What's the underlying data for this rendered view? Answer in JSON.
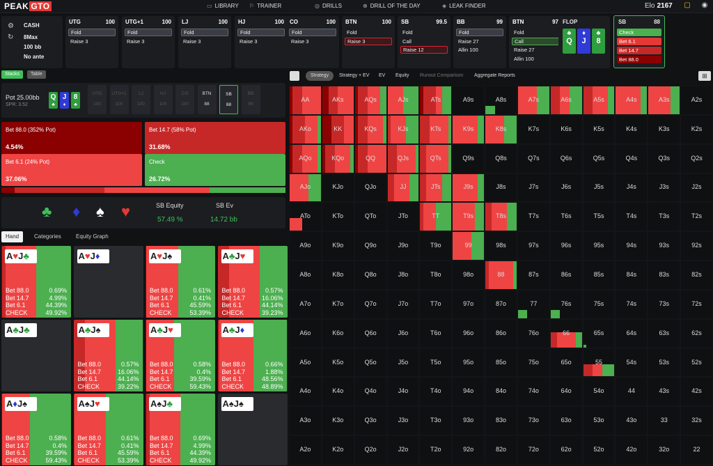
{
  "app": {
    "logo_text": "PEAK",
    "logo_accent": "GTO"
  },
  "nav": [
    {
      "label": "LIBRARY",
      "icon": "monitor-icon"
    },
    {
      "label": "TRAINER",
      "icon": "tie-icon"
    },
    {
      "label": "DRILLS",
      "icon": "target-icon"
    },
    {
      "label": "DRILL OF THE DAY",
      "icon": "compass-icon"
    },
    {
      "label": "LEAK FINDER",
      "icon": "drop-icon"
    }
  ],
  "user": {
    "elo_label": "Elo",
    "elo_value": "2167"
  },
  "game": {
    "mode": "CASH",
    "format": "8Max",
    "stack": "100 bb",
    "ante": "No ante"
  },
  "positions": [
    {
      "name": "UTG",
      "stack": "100",
      "actions": [
        "Fold",
        "Raise 3"
      ],
      "selected": 0
    },
    {
      "name": "UTG+1",
      "stack": "100",
      "actions": [
        "Fold",
        "Raise 3"
      ],
      "selected": 0
    },
    {
      "name": "LJ",
      "stack": "100",
      "actions": [
        "Fold",
        "Raise 3"
      ],
      "selected": 0
    },
    {
      "name": "HJ",
      "stack": "100",
      "actions": [
        "Fold",
        "Raise 3"
      ],
      "selected": 0
    },
    {
      "name": "CO",
      "stack": "100",
      "actions": [
        "Fold",
        "Raise 3"
      ],
      "selected": 0
    },
    {
      "name": "BTN",
      "stack": "100",
      "actions": [
        "Fold",
        "Raise 3"
      ],
      "selected": 1
    },
    {
      "name": "SB",
      "stack": "99.5",
      "actions": [
        "Fold",
        "Call",
        "Raise 12"
      ],
      "selected": 2
    },
    {
      "name": "BB",
      "stack": "99",
      "actions": [
        "Fold",
        "Raise 27",
        "Allin 100"
      ],
      "selected": 0
    },
    {
      "name": "BTN",
      "stack": "97",
      "actions": [
        "Fold",
        "Call",
        "Raise 27",
        "Allin 100"
      ],
      "selected": 1
    }
  ],
  "flop": {
    "label": "FLOP",
    "cards": [
      {
        "rank": "Q",
        "suit": "♣"
      },
      {
        "rank": "J",
        "suit": "♦"
      },
      {
        "rank": "8",
        "suit": "♣"
      }
    ]
  },
  "active": {
    "name": "SB",
    "stack": "88",
    "actions": [
      "Check",
      "Bet 6.1",
      "Bet 14.7",
      "Bet 88.0"
    ]
  },
  "left_tabs": {
    "stacks": "Stacks",
    "table": "Table"
  },
  "potbar": {
    "pot_label": "Pot",
    "pot_value": "25.00bb",
    "spr": "SPR: 3.52",
    "seats": [
      {
        "n": "UTG",
        "b": "100"
      },
      {
        "n": "UTG+1",
        "b": "100"
      },
      {
        "n": "LJ",
        "b": "100"
      },
      {
        "n": "HJ",
        "b": "100"
      },
      {
        "n": "CO",
        "b": "100"
      },
      {
        "n": "BTN",
        "b": "88"
      },
      {
        "n": "SB",
        "b": "88"
      },
      {
        "n": "BB",
        "b": "99"
      }
    ]
  },
  "strategy": [
    {
      "label": "Bet 88.0 (352% Pot)",
      "pct": "4.54%",
      "freq": 4.54,
      "color": "#8b0000"
    },
    {
      "label": "Bet 14.7 (58% Pot)",
      "pct": "31.68%",
      "freq": 31.68,
      "color": "#c62828"
    },
    {
      "label": "Bet 6.1 (24% Pot)",
      "pct": "37.06%",
      "freq": 37.06,
      "color": "#ef4444"
    },
    {
      "label": "Check",
      "pct": "26.72%",
      "freq": 26.72,
      "color": "#4caf50"
    }
  ],
  "equity": {
    "equity_label": "SB Equity",
    "equity_value": "57.49 %",
    "ev_label": "SB Ev",
    "ev_value": "14.72 bb",
    "suits": [
      "♣",
      "♦",
      "♠",
      "♥"
    ]
  },
  "hand_tabs": [
    "Hand",
    "Categories",
    "Equity Graph"
  ],
  "hands": [
    {
      "c1": "A",
      "s1": "♥",
      "c2": "J",
      "s2": "♣",
      "stats": [
        "Bet 88.0",
        "0.69%",
        "Bet 14.7",
        "4.99%",
        "Bet 6.1",
        "44.39%",
        "CHECK",
        "49.92%"
      ],
      "f": [
        0.69,
        4.99,
        44.39,
        49.92
      ]
    },
    {
      "c1": "A",
      "s1": "♥",
      "c2": "J",
      "s2": "♦",
      "stats": [],
      "f": []
    },
    {
      "c1": "A",
      "s1": "♥",
      "c2": "J",
      "s2": "♠",
      "stats": [
        "Bet 88.0",
        "0.61%",
        "Bet 14.7",
        "0.41%",
        "Bet 6.1",
        "45.59%",
        "CHECK",
        "53.39%"
      ],
      "f": [
        0.61,
        0.41,
        45.59,
        53.39
      ]
    },
    {
      "c1": "A",
      "s1": "♣",
      "c2": "J",
      "s2": "♥",
      "stats": [
        "Bet 88.0",
        "0.57%",
        "Bet 14.7",
        "16.06%",
        "Bet 6.1",
        "44.14%",
        "CHECK",
        "39.23%"
      ],
      "f": [
        0.57,
        16.06,
        44.14,
        39.23
      ]
    },
    {
      "c1": "A",
      "s1": "♣",
      "c2": "J",
      "s2": "♣",
      "stats": [],
      "f": []
    },
    {
      "c1": "A",
      "s1": "♣",
      "c2": "J",
      "s2": "♠",
      "stats": [
        "Bet 88.0",
        "0.57%",
        "Bet 14.7",
        "16.06%",
        "Bet 6.1",
        "44.14%",
        "CHECK",
        "39.22%"
      ],
      "f": [
        0.57,
        16.06,
        44.14,
        39.22
      ]
    },
    {
      "c1": "A",
      "s1": "♣",
      "c2": "J",
      "s2": "♥",
      "stats": [
        "Bet 88.0",
        "0.58%",
        "Bet 14.7",
        "0.4%",
        "Bet 6.1",
        "39.59%",
        "CHECK",
        "59.43%"
      ],
      "f": [
        0.58,
        0.4,
        39.59,
        59.43
      ]
    },
    {
      "c1": "A",
      "s1": "♣",
      "c2": "J",
      "s2": "♦",
      "stats": [
        "Bet 88.0",
        "0.66%",
        "Bet 14.7",
        "1.88%",
        "Bet 6.1",
        "48.56%",
        "CHECK",
        "48.89%"
      ],
      "f": [
        0.66,
        1.88,
        48.56,
        48.89
      ]
    },
    {
      "c1": "A",
      "s1": "♦",
      "c2": "J",
      "s2": "♠",
      "stats": [
        "Bet 88.0",
        "0.58%",
        "Bet 14.7",
        "0.4%",
        "Bet 6.1",
        "39.59%",
        "CHECK",
        "59.43%"
      ],
      "f": [
        0.58,
        0.4,
        39.59,
        59.43
      ]
    },
    {
      "c1": "A",
      "s1": "♠",
      "c2": "J",
      "s2": "♥",
      "stats": [
        "Bet 88.0",
        "0.61%",
        "Bet 14.7",
        "0.41%",
        "Bet 6.1",
        "45.59%",
        "CHECK",
        "53.39%"
      ],
      "f": [
        0.61,
        0.41,
        45.59,
        53.39
      ]
    },
    {
      "c1": "A",
      "s1": "♠",
      "c2": "J",
      "s2": "♣",
      "stats": [
        "Bet 88.0",
        "0.69%",
        "Bet 14.7",
        "4.99%",
        "Bet 6.1",
        "44.39%",
        "CHECK",
        "49.92%"
      ],
      "f": [
        0.69,
        4.99,
        44.39,
        49.92
      ]
    },
    {
      "c1": "A",
      "s1": "♠",
      "c2": "J",
      "s2": "♠",
      "stats": [],
      "f": []
    }
  ],
  "right_tabs": [
    "Strategy",
    "Strategy + EV",
    "EV",
    "Equity",
    "Runout Comparison",
    "Aggregate Reports"
  ],
  "ranks": [
    "A",
    "K",
    "Q",
    "J",
    "T",
    "9",
    "8",
    "7",
    "6",
    "5",
    "4",
    "3",
    "2"
  ],
  "range": {
    "AA": [
      0.1,
      0.3,
      0.6,
      0
    ],
    "AKs": [
      0.2,
      0.3,
      0.5,
      0
    ],
    "AQs": [
      0.1,
      0.3,
      0.4,
      0.2
    ],
    "AJs": [
      0,
      0,
      0.5,
      0.5
    ],
    "ATs": [
      0.1,
      0.4,
      0.2,
      0.3
    ],
    "A8s": [
      0,
      0,
      0,
      0.3
    ],
    "A7s": [
      0,
      0,
      0.6,
      0.4
    ],
    "A6s": [
      0,
      0.3,
      0.3,
      0.4
    ],
    "A5s": [
      0,
      0.3,
      0.5,
      0.2
    ],
    "A4s": [
      0,
      0,
      0.8,
      0.2
    ],
    "A3s": [
      0,
      0,
      0.7,
      0.3
    ],
    "AKo": [
      0.1,
      0.4,
      0.4,
      0.1
    ],
    "KK": [
      0.3,
      0.4,
      0.3,
      0
    ],
    "KQs": [
      0.1,
      0.3,
      0.5,
      0.1
    ],
    "KJs": [
      0,
      0.1,
      0.5,
      0.4
    ],
    "KTs": [
      0,
      0.3,
      0.6,
      0.1
    ],
    "K9s": [
      0,
      0,
      0.8,
      0.2
    ],
    "K8s": [
      0,
      0,
      0.6,
      0.4
    ],
    "AQo": [
      0.1,
      0.3,
      0.5,
      0.1
    ],
    "KQo": [
      0.1,
      0.3,
      0.5,
      0.1
    ],
    "QQ": [
      0.1,
      0.3,
      0.6,
      0
    ],
    "QJs": [
      0,
      0.3,
      0.6,
      0.1
    ],
    "QTs": [
      0,
      0.2,
      0.7,
      0.1
    ],
    "AJo": [
      0,
      0,
      0.6,
      0.4
    ],
    "JJ": [
      0,
      0.2,
      0.5,
      0.3
    ],
    "JTs": [
      0,
      0.2,
      0.5,
      0.3
    ],
    "J9s": [
      0,
      0,
      0.8,
      0.2
    ],
    "ATo": [
      0,
      0,
      0.4,
      0
    ],
    "TT": [
      0,
      0.1,
      0.4,
      0.5
    ],
    "T9s": [
      0,
      0,
      0.7,
      0.3
    ],
    "T8s": [
      0,
      0.2,
      0.5,
      0.3
    ],
    "99": [
      0,
      0,
      0.6,
      0.4
    ],
    "88": [
      0,
      0.1,
      0.8,
      0.1
    ],
    "77": [
      0,
      0,
      0,
      0.3
    ],
    "76s": [
      0,
      0,
      0,
      0.3
    ],
    "66": [
      0,
      0.2,
      0.6,
      0.2
    ],
    "65s": [
      0,
      0,
      0,
      0.1
    ],
    "55": [
      0,
      0.3,
      0.3,
      0.4
    ]
  },
  "range_fill_heights": {
    "A8s": 0.3,
    "77": 0.3,
    "76s": 0.3,
    "65s": 0.1,
    "55": 0.45,
    "ATo": 0.45,
    "66": 0.55
  }
}
